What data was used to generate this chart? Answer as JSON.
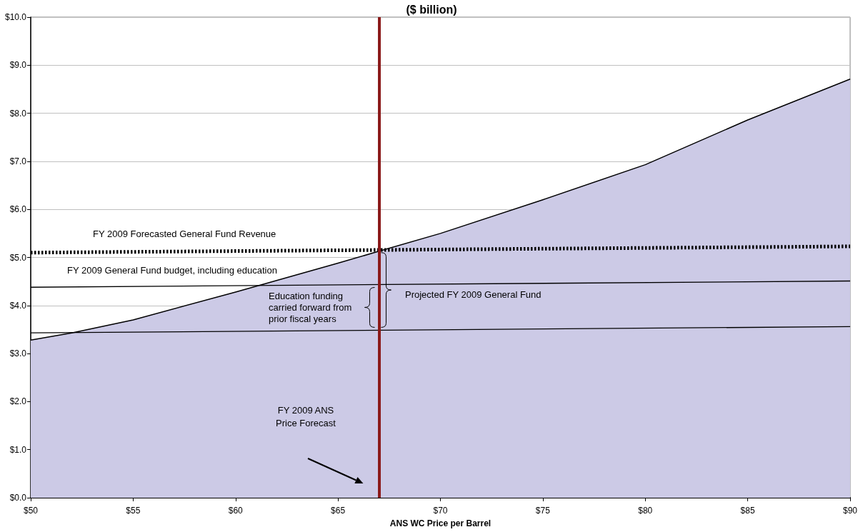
{
  "chart_data": {
    "type": "line",
    "title": "($ billion)",
    "xlabel": "ANS WC Price per Barrel",
    "xlim": [
      50,
      90
    ],
    "xticks": [
      {
        "value": 50,
        "label": "$50"
      },
      {
        "value": 55,
        "label": "$55"
      },
      {
        "value": 60,
        "label": "$60"
      },
      {
        "value": 65,
        "label": "$65"
      },
      {
        "value": 70,
        "label": "$70"
      },
      {
        "value": 75,
        "label": "$75"
      },
      {
        "value": 80,
        "label": "$80"
      },
      {
        "value": 85,
        "label": "$85"
      },
      {
        "value": 90,
        "label": "$90"
      }
    ],
    "ylim": [
      0,
      10
    ],
    "yticks": [
      {
        "value": 0,
        "label": "$0.0"
      },
      {
        "value": 1,
        "label": "$1.0"
      },
      {
        "value": 2,
        "label": "$2.0"
      },
      {
        "value": 3,
        "label": "$3.0"
      },
      {
        "value": 4,
        "label": "$4.0"
      },
      {
        "value": 5,
        "label": "$5.0"
      },
      {
        "value": 6,
        "label": "$6.0"
      },
      {
        "value": 7,
        "label": "$7.0"
      },
      {
        "value": 8,
        "label": "$8.0"
      },
      {
        "value": 9,
        "label": "$9.0"
      },
      {
        "value": 10,
        "label": "$10.0"
      }
    ],
    "grid": "y",
    "marker": "none",
    "series": [
      {
        "type": "area",
        "color": "#cccae6",
        "x": [
          50,
          52,
          55,
          60,
          65,
          67,
          70,
          75,
          80,
          85,
          90
        ],
        "values": [
          3.28,
          3.43,
          3.7,
          4.28,
          4.88,
          5.13,
          5.5,
          6.2,
          6.93,
          7.86,
          8.71
        ]
      },
      {
        "color": "#000000",
        "line_style": "dotted",
        "x": [
          50,
          90
        ],
        "values": [
          5.1,
          5.23
        ]
      },
      {
        "color": "#000000",
        "line_style": "solid",
        "x": [
          50,
          90
        ],
        "values": [
          4.38,
          4.51
        ]
      },
      {
        "color": "#000000",
        "line_style": "solid",
        "x": [
          50,
          90
        ],
        "values": [
          3.43,
          3.56
        ]
      }
    ],
    "ref_lines": [
      {
        "axis": "x",
        "value": 67,
        "color": "#8b1a1a"
      }
    ],
    "annotations": [
      "FY 2009 Forecasted General Fund Revenue",
      "FY 2009 General Fund budget, including education",
      "Education funding carried forward from prior fiscal years",
      "Projected FY 2009 General Fund",
      "FY 2009 ANS Price Forecast"
    ]
  }
}
